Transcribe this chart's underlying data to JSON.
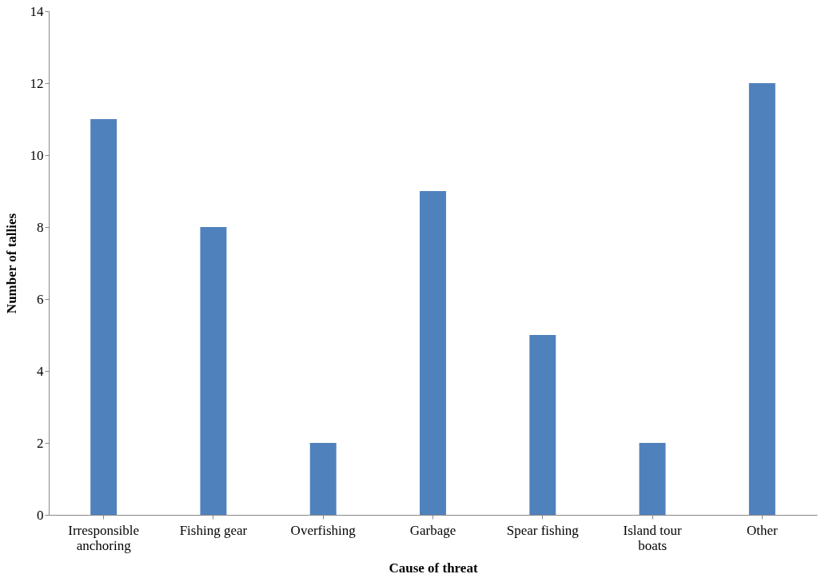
{
  "chart_data": {
    "type": "bar",
    "xlabel": "Cause of threat",
    "ylabel": "Number of tallies",
    "categories": [
      "Irresponsible anchoring",
      "Fishing gear",
      "Overfishing",
      "Garbage",
      "Spear fishing",
      "Island tour boats",
      "Other"
    ],
    "values": [
      11,
      8,
      2,
      9,
      5,
      2,
      12
    ],
    "color": "#4f81bd",
    "ylim": [
      0,
      14
    ],
    "yticks": [
      0,
      2,
      4,
      6,
      8,
      10,
      12,
      14
    ],
    "grid": false
  }
}
